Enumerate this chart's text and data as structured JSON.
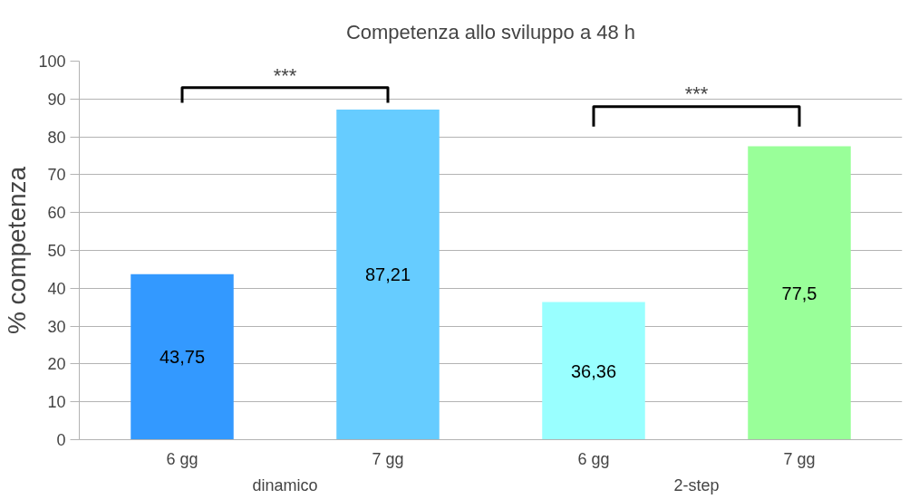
{
  "chart_data": {
    "type": "bar",
    "title": "Competenza allo sviluppo a 48 h",
    "ylabel": "% competenza",
    "categories": [
      "6 gg",
      "7 gg",
      "6 gg",
      "7 gg"
    ],
    "values": [
      43.75,
      87.21,
      36.36,
      77.5
    ],
    "colors": [
      "#3399ff",
      "#66ccff",
      "#99ffff",
      "#99ff99"
    ],
    "value_labels": [
      "43,75",
      "87,21",
      "36,36",
      "77,5"
    ],
    "ylim": [
      0,
      100
    ],
    "yticks": [
      0,
      10,
      20,
      30,
      40,
      50,
      60,
      70,
      80,
      90,
      100
    ],
    "grid": "y",
    "annotations": [
      "***",
      "***",
      "dinamico",
      "2-step"
    ]
  }
}
